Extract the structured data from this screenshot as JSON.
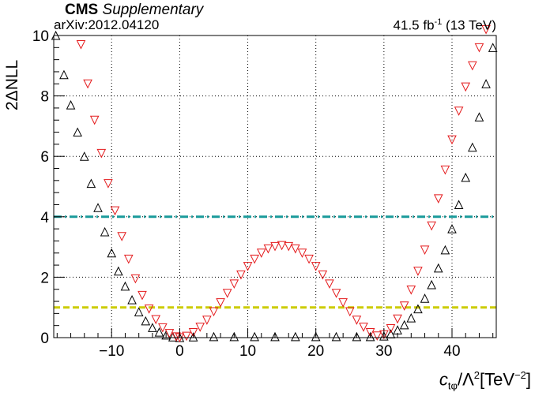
{
  "header": {
    "cms": "CMS",
    "supplementary": "Supplementary",
    "arxiv": "arXiv:2012.04120",
    "lumi_value": "41.5 fb",
    "lumi_exp": "-1",
    "lumi_energy": " (13 TeV)"
  },
  "chart_data": {
    "type": "scatter",
    "title": "",
    "ylabel": "2ΔNLL",
    "xlabel_main": "c",
    "xlabel_sub": "tφ",
    "xlabel_mid": "/Λ",
    "xlabel_sup1": "2",
    "xlabel_unit": "[TeV",
    "xlabel_sup2": "−2",
    "xlabel_close": "]",
    "xlim": [
      -18.5,
      46.5
    ],
    "ylim": [
      0,
      10
    ],
    "x_ticks": [
      -10,
      0,
      10,
      20,
      30,
      40
    ],
    "y_ticks": [
      0,
      2,
      4,
      6,
      8,
      10
    ],
    "tick_labels_x": [
      "−10",
      "0",
      "10",
      "20",
      "30",
      "40"
    ],
    "tick_labels_y": [
      "0",
      "2",
      "4",
      "6",
      "8",
      "10"
    ],
    "grid": true,
    "reference_lines": [
      {
        "y": 4,
        "color": "#1a9a9a",
        "style": "dash-dot"
      },
      {
        "y": 1,
        "color": "#cccc00",
        "style": "dashed"
      }
    ],
    "series": [
      {
        "marker": "triangle-up",
        "color": "#000000",
        "x": [
          -18.2,
          -17,
          -16,
          -15,
          -14,
          -13,
          -12,
          -11,
          -10,
          -9,
          -8,
          -7,
          -6,
          -5,
          -4,
          -3,
          -2,
          -1,
          0,
          2,
          5,
          8,
          11,
          14,
          17,
          20,
          23,
          26,
          28,
          30,
          31,
          32,
          33,
          34,
          35,
          36,
          37,
          38,
          39,
          40,
          41,
          42,
          43,
          44,
          45,
          46
        ],
        "y": [
          10,
          8.7,
          7.7,
          6.8,
          6.0,
          5.1,
          4.3,
          3.5,
          2.8,
          2.2,
          1.7,
          1.25,
          0.85,
          0.55,
          0.33,
          0.18,
          0.08,
          0.02,
          0.0,
          0.02,
          0.03,
          0.03,
          0.03,
          0.03,
          0.03,
          0.03,
          0.03,
          0.03,
          0.03,
          0.05,
          0.12,
          0.25,
          0.42,
          0.65,
          0.95,
          1.3,
          1.75,
          2.3,
          2.9,
          3.6,
          4.4,
          5.3,
          6.3,
          7.3,
          8.4,
          9.6
        ]
      },
      {
        "marker": "triangle-down",
        "color": "#e41a1c",
        "x": [
          -14.5,
          -13.5,
          -12.5,
          -11.5,
          -10.5,
          -9.5,
          -8.5,
          -7.5,
          -6.5,
          -5.5,
          -4.5,
          -3.5,
          -2.5,
          -1.5,
          -0.5,
          0,
          1,
          2,
          3,
          4,
          5,
          6,
          7,
          8,
          9,
          10,
          11,
          12,
          13,
          14,
          15,
          16,
          17,
          18,
          19,
          20,
          21,
          22,
          23,
          24,
          25,
          26,
          27,
          28,
          29,
          30,
          31,
          32,
          33,
          34,
          35,
          36,
          37,
          38,
          39,
          40,
          41,
          42,
          43,
          44,
          45
        ],
        "y": [
          9.7,
          8.4,
          7.2,
          6.1,
          5.1,
          4.2,
          3.35,
          2.6,
          1.95,
          1.4,
          0.95,
          0.6,
          0.33,
          0.14,
          0.03,
          0.0,
          0.05,
          0.17,
          0.35,
          0.58,
          0.86,
          1.16,
          1.47,
          1.78,
          2.08,
          2.36,
          2.6,
          2.8,
          2.94,
          3.02,
          3.05,
          3.02,
          2.94,
          2.8,
          2.6,
          2.36,
          2.08,
          1.78,
          1.47,
          1.16,
          0.86,
          0.58,
          0.35,
          0.17,
          0.06,
          0.1,
          0.3,
          0.62,
          1.05,
          1.58,
          2.2,
          2.9,
          3.7,
          4.6,
          5.55,
          6.55,
          7.5,
          8.3,
          9.0,
          9.6,
          10.2
        ]
      }
    ]
  }
}
